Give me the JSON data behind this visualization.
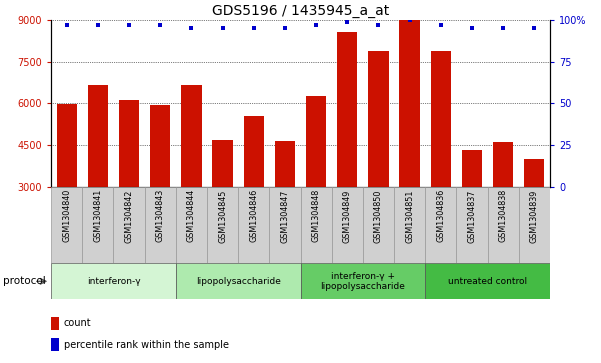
{
  "title": "GDS5196 / 1435945_a_at",
  "samples": [
    "GSM1304840",
    "GSM1304841",
    "GSM1304842",
    "GSM1304843",
    "GSM1304844",
    "GSM1304845",
    "GSM1304846",
    "GSM1304847",
    "GSM1304848",
    "GSM1304849",
    "GSM1304850",
    "GSM1304851",
    "GSM1304836",
    "GSM1304837",
    "GSM1304838",
    "GSM1304839"
  ],
  "counts": [
    5980,
    6680,
    6130,
    5950,
    6650,
    4680,
    5560,
    4640,
    6280,
    8560,
    7900,
    9750,
    7900,
    4320,
    4620,
    4000
  ],
  "percentiles": [
    97,
    97,
    97,
    97,
    95,
    95,
    95,
    95,
    97,
    99,
    97,
    100,
    97,
    95,
    95,
    95
  ],
  "groups": [
    {
      "label": "interferon-γ",
      "start": 0,
      "end": 4,
      "color": "#d4f5d4"
    },
    {
      "label": "lipopolysaccharide",
      "start": 4,
      "end": 8,
      "color": "#aeeaae"
    },
    {
      "label": "interferon-γ +\nlipopolysaccharide",
      "start": 8,
      "end": 12,
      "color": "#66cc66"
    },
    {
      "label": "untreated control",
      "start": 12,
      "end": 16,
      "color": "#44bb44"
    }
  ],
  "ylim_left": [
    3000,
    9000
  ],
  "ylim_right": [
    0,
    100
  ],
  "yticks_left": [
    3000,
    4500,
    6000,
    7500,
    9000
  ],
  "yticks_right": [
    0,
    25,
    50,
    75,
    100
  ],
  "bar_color": "#cc1100",
  "dot_color": "#0000cc",
  "grid_color": "#000000",
  "xlabel_color": "#cc1100",
  "ylabel_right_color": "#0000cc",
  "bg_color": "#ffffff",
  "title_fontsize": 10,
  "tick_fontsize": 7,
  "label_fontsize": 7,
  "cell_color": "#d0d0d0",
  "cell_edge_color": "#999999"
}
